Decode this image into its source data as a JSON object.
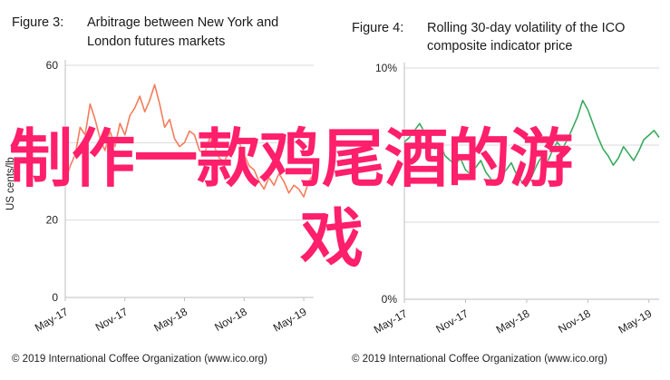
{
  "figures": [
    {
      "label": "Figure 3:",
      "title_line1": "Arbitrage between New York and",
      "title_line2": "London futures markets",
      "credit": "© 2019 International Coffee Organization (www.ico.org)"
    },
    {
      "label": "Figure 4:",
      "title_line1": "Rolling 30-day volatility of the ICO",
      "title_line2": "composite indicator price",
      "credit": "© 2019 International Coffee Organization (www.ico.org)"
    }
  ],
  "overlay_text": {
    "line1": "制作一款鸡尾酒的游",
    "line2": "戏"
  },
  "colors": {
    "left_series": "#f47c5c",
    "right_series": "#3aaa5e",
    "overlay": "#ff1f6a",
    "grid": "#d9d9d9"
  },
  "chart_data": [
    {
      "type": "line",
      "title": "Arbitrage between New York and London futures markets",
      "xlabel": "",
      "ylabel": "US cents/lb",
      "x_ticks": [
        "May-17",
        "Nov-17",
        "May-18",
        "Nov-18",
        "May-19"
      ],
      "y_ticks": [
        "0",
        "20",
        "",
        "60"
      ],
      "ylim": [
        0,
        60
      ],
      "x_range_months": [
        "2017-05",
        "2019-07"
      ],
      "grid": true,
      "legend": "none",
      "series": [
        {
          "values": [
            [
              0,
              30
            ],
            [
              0.5,
              34
            ],
            [
              1.0,
              37
            ],
            [
              1.5,
              44
            ],
            [
              2.0,
              42
            ],
            [
              2.5,
              50
            ],
            [
              3.0,
              46
            ],
            [
              3.5,
              41
            ],
            [
              4.0,
              38
            ],
            [
              4.5,
              43
            ],
            [
              5.0,
              39
            ],
            [
              5.5,
              45
            ],
            [
              6.0,
              42
            ],
            [
              6.5,
              47
            ],
            [
              7.0,
              49
            ],
            [
              7.5,
              52
            ],
            [
              8.0,
              48
            ],
            [
              8.5,
              51
            ],
            [
              9.0,
              55
            ],
            [
              9.5,
              50
            ],
            [
              10.0,
              44
            ],
            [
              10.5,
              46
            ],
            [
              11.0,
              41
            ],
            [
              11.5,
              39
            ],
            [
              12.0,
              40
            ],
            [
              12.5,
              43
            ],
            [
              13.0,
              42
            ],
            [
              13.5,
              38
            ],
            [
              14.0,
              37
            ],
            [
              14.5,
              41
            ],
            [
              15.0,
              39
            ],
            [
              15.5,
              36
            ],
            [
              16.0,
              35
            ],
            [
              16.5,
              38
            ],
            [
              17.0,
              42
            ],
            [
              17.5,
              40
            ],
            [
              18.0,
              37
            ],
            [
              18.5,
              34
            ],
            [
              19.0,
              33
            ],
            [
              19.5,
              30
            ],
            [
              20.0,
              28
            ],
            [
              20.5,
              31
            ],
            [
              21.0,
              29
            ],
            [
              21.5,
              32
            ],
            [
              22.0,
              30
            ],
            [
              22.5,
              27
            ],
            [
              23.0,
              29
            ],
            [
              23.5,
              28
            ],
            [
              24.0,
              26
            ],
            [
              24.5,
              30
            ],
            [
              25.0,
              32
            ]
          ]
        }
      ]
    },
    {
      "type": "line",
      "title": "Rolling 30-day volatility of the ICO composite indicator price",
      "xlabel": "",
      "ylabel": "",
      "x_ticks": [
        "May-17",
        "Nov-17",
        "May-18",
        "Nov-18",
        "May-19"
      ],
      "y_ticks": [
        "0%",
        "",
        "",
        "10%"
      ],
      "ylim": [
        0,
        10
      ],
      "x_range_months": [
        "2017-05",
        "2019-07"
      ],
      "grid": true,
      "legend": "none",
      "series": [
        {
          "values": [
            [
              0,
              6.8
            ],
            [
              0.5,
              7.0
            ],
            [
              1.0,
              7.3
            ],
            [
              1.5,
              7.6
            ],
            [
              2.0,
              7.2
            ],
            [
              2.5,
              6.9
            ],
            [
              3.0,
              6.5
            ],
            [
              3.5,
              6.7
            ],
            [
              4.0,
              6.2
            ],
            [
              4.5,
              6.0
            ],
            [
              5.0,
              5.8
            ],
            [
              5.5,
              6.1
            ],
            [
              6.0,
              5.6
            ],
            [
              6.5,
              5.4
            ],
            [
              7.0,
              5.7
            ],
            [
              7.5,
              6.0
            ],
            [
              8.0,
              5.5
            ],
            [
              8.5,
              5.2
            ],
            [
              9.0,
              5.0
            ],
            [
              9.5,
              5.3
            ],
            [
              10.0,
              5.6
            ],
            [
              10.5,
              5.9
            ],
            [
              11.0,
              5.4
            ],
            [
              11.5,
              5.1
            ],
            [
              12.0,
              4.9
            ],
            [
              12.5,
              5.3
            ],
            [
              13.0,
              5.8
            ],
            [
              13.5,
              6.2
            ],
            [
              14.0,
              5.9
            ],
            [
              14.5,
              6.4
            ],
            [
              15.0,
              6.8
            ],
            [
              15.5,
              6.5
            ],
            [
              16.0,
              6.9
            ],
            [
              16.5,
              7.4
            ],
            [
              17.0,
              7.9
            ],
            [
              17.5,
              8.6
            ],
            [
              18.0,
              8.2
            ],
            [
              18.5,
              7.6
            ],
            [
              19.0,
              7.0
            ],
            [
              19.5,
              6.5
            ],
            [
              20.0,
              6.2
            ],
            [
              20.5,
              5.8
            ],
            [
              21.0,
              6.1
            ],
            [
              21.5,
              6.6
            ],
            [
              22.0,
              6.3
            ],
            [
              22.5,
              6.0
            ],
            [
              23.0,
              6.4
            ],
            [
              23.5,
              6.9
            ],
            [
              24.0,
              7.1
            ],
            [
              24.5,
              7.3
            ],
            [
              25.0,
              7.0
            ]
          ]
        }
      ]
    }
  ]
}
